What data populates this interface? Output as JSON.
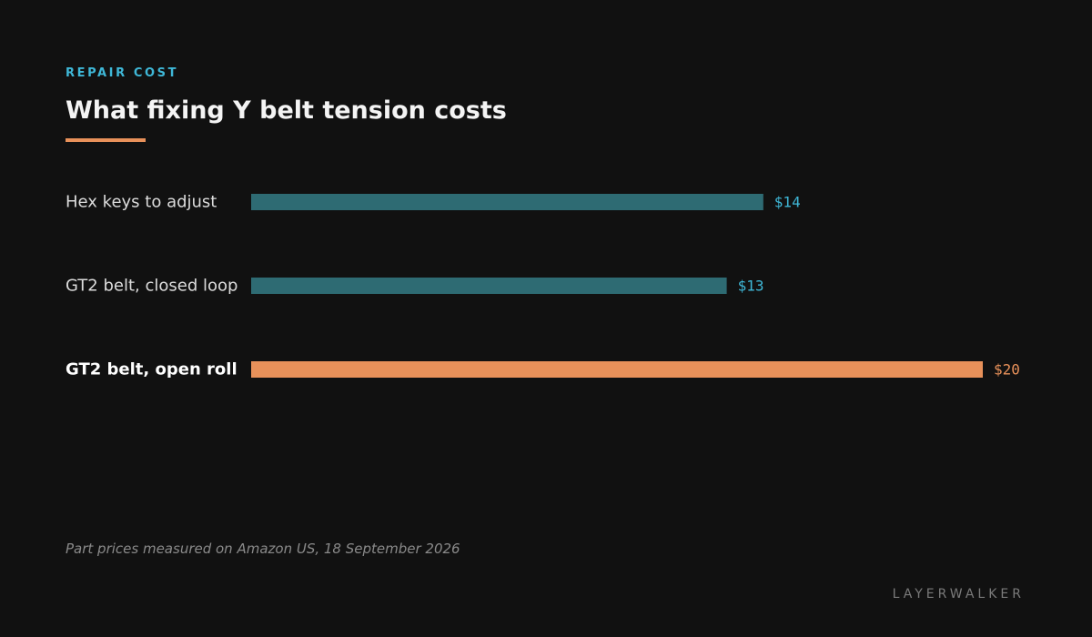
{
  "eyebrow": "REPAIR COST",
  "title": "What fixing Y belt tension costs",
  "source": "Part prices measured on Amazon US, 18 September 2026",
  "brand": "LAYERWALKER",
  "colors": {
    "background": "#111111",
    "accent": "#e8915a",
    "bar": "#2e6b73",
    "value_text": "#3fb8d8"
  },
  "chart_data": {
    "type": "bar",
    "orientation": "horizontal",
    "categories": [
      "Hex keys to adjust",
      "GT2 belt, closed loop",
      "GT2 belt, open roll"
    ],
    "values": [
      14,
      13,
      20
    ],
    "value_labels": [
      "$14",
      "$13",
      "$20"
    ],
    "highlight_index": 2,
    "xlim": [
      0,
      20
    ],
    "grid": false,
    "legend": "none"
  }
}
